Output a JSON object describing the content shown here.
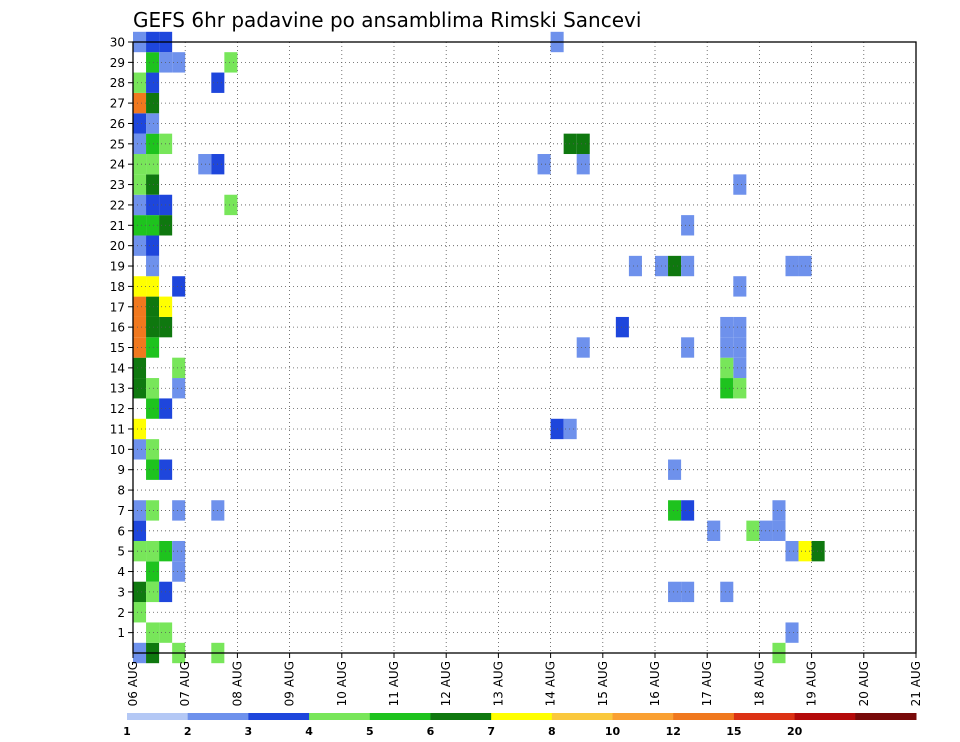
{
  "chart_data": {
    "type": "heatmap",
    "title": "GEFS 6hr padavine po ansamblima Rimski Sancevi",
    "xlabel": "",
    "ylabel": "",
    "x_ticks": [
      "06 AUG",
      "07 AUG",
      "08 AUG",
      "09 AUG",
      "10 AUG",
      "11 AUG",
      "12 AUG",
      "13 AUG",
      "14 AUG",
      "15 AUG",
      "16 AUG",
      "17 AUG",
      "18 AUG",
      "19 AUG",
      "20 AUG",
      "21 AUG"
    ],
    "xlim": [
      0,
      60
    ],
    "x_step_hours": 6,
    "y_ticks": [
      1,
      2,
      3,
      4,
      5,
      6,
      7,
      8,
      9,
      10,
      11,
      12,
      13,
      14,
      15,
      16,
      17,
      18,
      19,
      20,
      21,
      22,
      23,
      24,
      25,
      26,
      27,
      28,
      29,
      30
    ],
    "ylim": [
      0,
      30
    ],
    "grid": true,
    "colorbar": {
      "labels": [
        "1",
        "2",
        "3",
        "4",
        "5",
        "6",
        "7",
        "8",
        "10",
        "12",
        "15",
        "20"
      ],
      "colors": [
        "#b4c8f5",
        "#6e91ec",
        "#1e46dc",
        "#78e65a",
        "#1ec31e",
        "#0f780f",
        "#ffff00",
        "#fac83c",
        "#faa032",
        "#f0781e",
        "#dc3214",
        "#b40a0a",
        "#780a0a"
      ]
    },
    "cells": [
      [
        0,
        0,
        1
      ],
      [
        1,
        0,
        5
      ],
      [
        3,
        0,
        3
      ],
      [
        1,
        1,
        3
      ],
      [
        2,
        1,
        3
      ],
      [
        0,
        2,
        3
      ],
      [
        0,
        3,
        5
      ],
      [
        1,
        3,
        3
      ],
      [
        2,
        3,
        2
      ],
      [
        3,
        4,
        1
      ],
      [
        1,
        4,
        4
      ],
      [
        0,
        5,
        3
      ],
      [
        1,
        5,
        3
      ],
      [
        2,
        5,
        4
      ],
      [
        3,
        5,
        1
      ],
      [
        0,
        6,
        2
      ],
      [
        0,
        7,
        1
      ],
      [
        1,
        7,
        3
      ],
      [
        3,
        7,
        1
      ],
      [
        6,
        7,
        1
      ],
      [
        1,
        9,
        4
      ],
      [
        2,
        9,
        2
      ],
      [
        0,
        10,
        1
      ],
      [
        1,
        10,
        3
      ],
      [
        0,
        11,
        6
      ],
      [
        1,
        12,
        4
      ],
      [
        2,
        12,
        2
      ],
      [
        0,
        13,
        5
      ],
      [
        1,
        13,
        3
      ],
      [
        3,
        13,
        1
      ],
      [
        0,
        14,
        5
      ],
      [
        3,
        14,
        3
      ],
      [
        0,
        15,
        9
      ],
      [
        1,
        15,
        4
      ],
      [
        0,
        16,
        9
      ],
      [
        1,
        16,
        5
      ],
      [
        2,
        16,
        5
      ],
      [
        0,
        17,
        9
      ],
      [
        1,
        17,
        5
      ],
      [
        2,
        17,
        6
      ],
      [
        0,
        18,
        6
      ],
      [
        1,
        18,
        6
      ],
      [
        3,
        18,
        2
      ],
      [
        1,
        19,
        1
      ],
      [
        0,
        20,
        1
      ],
      [
        1,
        20,
        2
      ],
      [
        0,
        21,
        4
      ],
      [
        1,
        21,
        4
      ],
      [
        2,
        21,
        5
      ],
      [
        0,
        22,
        1
      ],
      [
        1,
        22,
        2
      ],
      [
        2,
        22,
        2
      ],
      [
        0,
        23,
        3
      ],
      [
        1,
        23,
        5
      ],
      [
        0,
        24,
        3
      ],
      [
        1,
        24,
        3
      ],
      [
        5,
        24,
        1
      ],
      [
        6,
        24,
        2
      ],
      [
        0,
        25,
        1
      ],
      [
        1,
        25,
        4
      ],
      [
        2,
        25,
        3
      ],
      [
        0,
        26,
        2
      ],
      [
        1,
        26,
        1
      ],
      [
        0,
        27,
        9
      ],
      [
        1,
        27,
        5
      ],
      [
        0,
        28,
        3
      ],
      [
        1,
        28,
        2
      ],
      [
        6,
        28,
        2
      ],
      [
        1,
        29,
        4
      ],
      [
        2,
        29,
        1
      ],
      [
        3,
        29,
        1
      ],
      [
        0,
        30,
        1
      ],
      [
        1,
        30,
        2
      ],
      [
        2,
        30,
        2
      ],
      [
        7,
        29,
        3
      ],
      [
        7,
        22,
        3
      ],
      [
        6,
        0,
        3
      ],
      [
        32,
        30,
        1
      ],
      [
        31,
        24,
        1
      ],
      [
        34,
        24,
        1
      ],
      [
        34,
        15,
        1
      ],
      [
        32,
        11,
        2
      ],
      [
        33,
        11,
        1
      ],
      [
        37,
        16,
        2
      ],
      [
        38,
        19,
        1
      ],
      [
        40,
        19,
        1
      ],
      [
        41,
        19,
        5
      ],
      [
        42,
        19,
        1
      ],
      [
        42,
        21,
        1
      ],
      [
        42,
        15,
        1
      ],
      [
        41,
        7,
        4
      ],
      [
        42,
        7,
        2
      ],
      [
        41,
        3,
        1
      ],
      [
        42,
        3,
        1
      ],
      [
        41,
        9,
        1
      ],
      [
        44,
        6,
        1
      ],
      [
        45,
        3,
        1
      ],
      [
        45,
        13,
        4
      ],
      [
        46,
        13,
        3
      ],
      [
        46,
        14,
        1
      ],
      [
        46,
        15,
        1
      ],
      [
        46,
        16,
        1
      ],
      [
        46,
        18,
        1
      ],
      [
        46,
        23,
        1
      ],
      [
        45,
        14,
        3
      ],
      [
        45,
        15,
        1
      ],
      [
        45,
        16,
        1
      ],
      [
        47,
        6,
        3
      ],
      [
        48,
        6,
        1
      ],
      [
        49,
        6,
        1
      ],
      [
        50,
        5,
        1
      ],
      [
        51,
        5,
        6
      ],
      [
        52,
        5,
        5
      ],
      [
        50,
        19,
        1
      ],
      [
        51,
        19,
        1
      ],
      [
        49,
        7,
        1
      ],
      [
        49,
        0,
        3
      ],
      [
        50,
        1,
        1
      ],
      [
        33,
        25,
        5
      ],
      [
        34,
        25,
        5
      ]
    ]
  }
}
